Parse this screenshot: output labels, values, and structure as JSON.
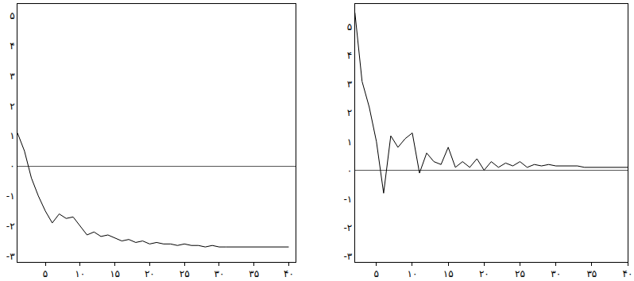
{
  "chart_data": [
    {
      "type": "line",
      "color": "#000000",
      "grid": false,
      "x": [
        1,
        2,
        3,
        4,
        5,
        6,
        7,
        8,
        9,
        10,
        11,
        12,
        13,
        14,
        15,
        16,
        17,
        18,
        19,
        20,
        21,
        22,
        23,
        24,
        25,
        26,
        27,
        28,
        29,
        30,
        31,
        32,
        33,
        34,
        35,
        36,
        37,
        38,
        39,
        40
      ],
      "values": [
        1.1,
        0.5,
        -0.4,
        -1.0,
        -1.5,
        -1.9,
        -1.6,
        -1.75,
        -1.7,
        -2.0,
        -2.3,
        -2.2,
        -2.35,
        -2.3,
        -2.4,
        -2.5,
        -2.45,
        -2.55,
        -2.5,
        -2.6,
        -2.55,
        -2.6,
        -2.6,
        -2.65,
        -2.6,
        -2.65,
        -2.65,
        -2.7,
        -2.65,
        -2.7,
        -2.7,
        -2.7,
        -2.7,
        -2.7,
        -2.7,
        -2.7,
        -2.7,
        -2.7,
        -2.7,
        -2.7
      ],
      "xlim": [
        1,
        41
      ],
      "ylim": [
        -3.2,
        5.4
      ],
      "xticks": [
        {
          "value": 5,
          "label": "۵"
        },
        {
          "value": 10,
          "label": "۱۰"
        },
        {
          "value": 15,
          "label": "۱۵"
        },
        {
          "value": 20,
          "label": "۲۰"
        },
        {
          "value": 25,
          "label": "۲۵"
        },
        {
          "value": 30,
          "label": "۳۰"
        },
        {
          "value": 35,
          "label": "۳۵"
        },
        {
          "value": 40,
          "label": "۴۰"
        }
      ],
      "yticks": [
        {
          "value": -3,
          "label": "-۳"
        },
        {
          "value": -2,
          "label": "-۲"
        },
        {
          "value": -1,
          "label": "-۱"
        },
        {
          "value": 0,
          "label": "۰"
        },
        {
          "value": 1,
          "label": "۱"
        },
        {
          "value": 2,
          "label": "۲"
        },
        {
          "value": 3,
          "label": "۳"
        },
        {
          "value": 4,
          "label": "۴"
        },
        {
          "value": 5,
          "label": "۵"
        }
      ]
    },
    {
      "type": "line",
      "color": "#000000",
      "grid": false,
      "x": [
        2,
        3,
        4,
        5,
        6,
        7,
        8,
        9,
        10,
        11,
        12,
        13,
        14,
        15,
        16,
        17,
        18,
        19,
        20,
        21,
        22,
        23,
        24,
        25,
        26,
        27,
        28,
        29,
        30,
        31,
        32,
        33,
        34,
        35,
        36,
        37,
        38,
        39,
        40
      ],
      "values": [
        5.5,
        3.1,
        2.2,
        1.0,
        -0.8,
        1.2,
        0.8,
        1.1,
        1.3,
        -0.1,
        0.6,
        0.3,
        0.2,
        0.8,
        0.1,
        0.3,
        0.1,
        0.4,
        0.0,
        0.3,
        0.1,
        0.25,
        0.15,
        0.3,
        0.1,
        0.2,
        0.15,
        0.2,
        0.15,
        0.15,
        0.15,
        0.15,
        0.1,
        0.1,
        0.1,
        0.1,
        0.1,
        0.1,
        0.1
      ],
      "xlim": [
        2,
        40
      ],
      "ylim": [
        -3.2,
        5.8
      ],
      "xticks": [
        {
          "value": 5,
          "label": "۵"
        },
        {
          "value": 10,
          "label": "۱۰"
        },
        {
          "value": 15,
          "label": "۱۵"
        },
        {
          "value": 20,
          "label": "۲۰"
        },
        {
          "value": 25,
          "label": "۲۵"
        },
        {
          "value": 30,
          "label": "۳۰"
        },
        {
          "value": 35,
          "label": "۳۵"
        },
        {
          "value": 40,
          "label": "۴۰"
        }
      ],
      "yticks": [
        {
          "value": -3,
          "label": "-۳"
        },
        {
          "value": -2,
          "label": "-۲"
        },
        {
          "value": -1,
          "label": "-۱"
        },
        {
          "value": 0,
          "label": "۰"
        },
        {
          "value": 1,
          "label": "۱"
        },
        {
          "value": 2,
          "label": "۲"
        },
        {
          "value": 3,
          "label": "۳"
        },
        {
          "value": 4,
          "label": "۴"
        },
        {
          "value": 5,
          "label": "۵"
        }
      ]
    }
  ]
}
